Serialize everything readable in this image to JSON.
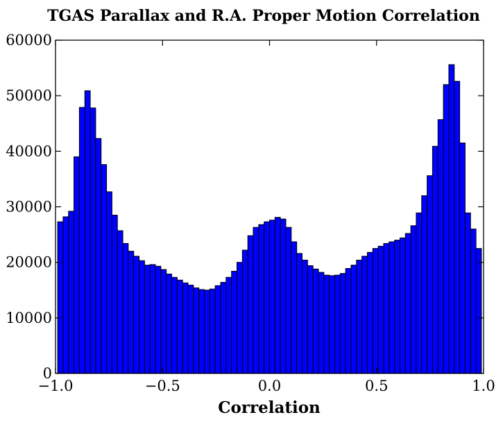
{
  "chart_data": {
    "type": "bar",
    "title": "TGAS Parallax and R.A. Proper Motion Correlation",
    "xlabel": "Correlation",
    "ylabel": "",
    "xlim": [
      -1.0,
      1.0
    ],
    "ylim": [
      0,
      60000
    ],
    "xticks": [
      -1.0,
      -0.5,
      0.0,
      0.5,
      1.0
    ],
    "xtick_labels": [
      "−1.0",
      "−0.5",
      "0.0",
      "0.5",
      "1.0"
    ],
    "yticks": [
      0,
      10000,
      20000,
      30000,
      40000,
      50000,
      60000
    ],
    "ytick_labels": [
      "0",
      "10000",
      "20000",
      "30000",
      "40000",
      "50000",
      "60000"
    ],
    "bin_range": [
      -0.99,
      0.99
    ],
    "bar_color": "#0000ff",
    "edge_color": "#000000",
    "values": [
      27300,
      28200,
      29200,
      39000,
      47900,
      50900,
      47800,
      42300,
      37600,
      32700,
      28500,
      25700,
      23400,
      22000,
      21100,
      20300,
      19500,
      19600,
      19300,
      18700,
      17900,
      17300,
      16800,
      16300,
      15900,
      15400,
      15100,
      15000,
      15200,
      15800,
      16400,
      17300,
      18400,
      20000,
      22200,
      24800,
      26300,
      26800,
      27300,
      27600,
      28100,
      27800,
      26300,
      23700,
      21600,
      20400,
      19400,
      18800,
      18200,
      17700,
      17600,
      17700,
      18000,
      18900,
      19500,
      20400,
      21100,
      21800,
      22500,
      22900,
      23400,
      23700,
      24000,
      24400,
      25200,
      26600,
      28900,
      32000,
      35600,
      40900,
      45700,
      52000,
      55600,
      52600,
      41500,
      28900,
      26000,
      22500
    ]
  }
}
